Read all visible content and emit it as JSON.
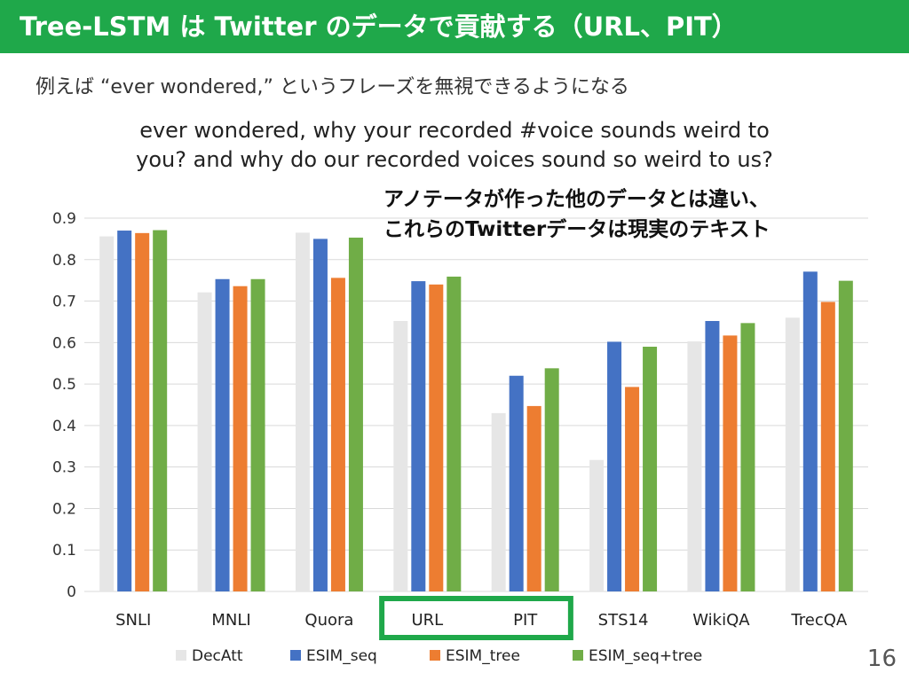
{
  "slide": {
    "title": "Tree-LSTM は Twitter のデータで貢献する（URL、PIT）",
    "subtitle": "例えば “ever wondered,” というフレーズを無視できるようになる",
    "quote_line1": "ever wondered, why your recorded #voice sounds weird to",
    "quote_line2": "you? and why do our recorded voices sound so weird to us?",
    "note_line1": "アノテータが作った他のデータとは違い、",
    "note_line2": "これらのTwitterデータは現実のテキスト",
    "page_number": "16",
    "highlight_color": "#1fa84a"
  },
  "chart_data": {
    "type": "bar",
    "categories": [
      "SNLI",
      "MNLI",
      "Quora",
      "URL",
      "PIT",
      "STS14",
      "WikiQA",
      "TrecQA"
    ],
    "series": [
      {
        "name": "DecAtt",
        "color": "#e6e6e6",
        "values": [
          0.856,
          0.721,
          0.865,
          0.652,
          0.43,
          0.317,
          0.603,
          0.66
        ]
      },
      {
        "name": "ESIM_seq",
        "color": "#4472c4",
        "values": [
          0.87,
          0.753,
          0.85,
          0.748,
          0.52,
          0.602,
          0.652,
          0.771
        ]
      },
      {
        "name": "ESIM_tree",
        "color": "#ed7d31",
        "values": [
          0.864,
          0.736,
          0.756,
          0.74,
          0.447,
          0.493,
          0.617,
          0.698
        ]
      },
      {
        "name": "ESIM_seq+tree",
        "color": "#70ad47",
        "values": [
          0.871,
          0.753,
          0.853,
          0.759,
          0.538,
          0.59,
          0.647,
          0.749
        ]
      }
    ],
    "ylim": [
      0,
      0.9
    ],
    "yticks": [
      "0",
      "0.1",
      "0.2",
      "0.3",
      "0.4",
      "0.5",
      "0.6",
      "0.7",
      "0.8",
      "0.9"
    ],
    "grid": true,
    "legend_position": "bottom",
    "highlighted_categories": [
      "URL",
      "PIT"
    ]
  }
}
